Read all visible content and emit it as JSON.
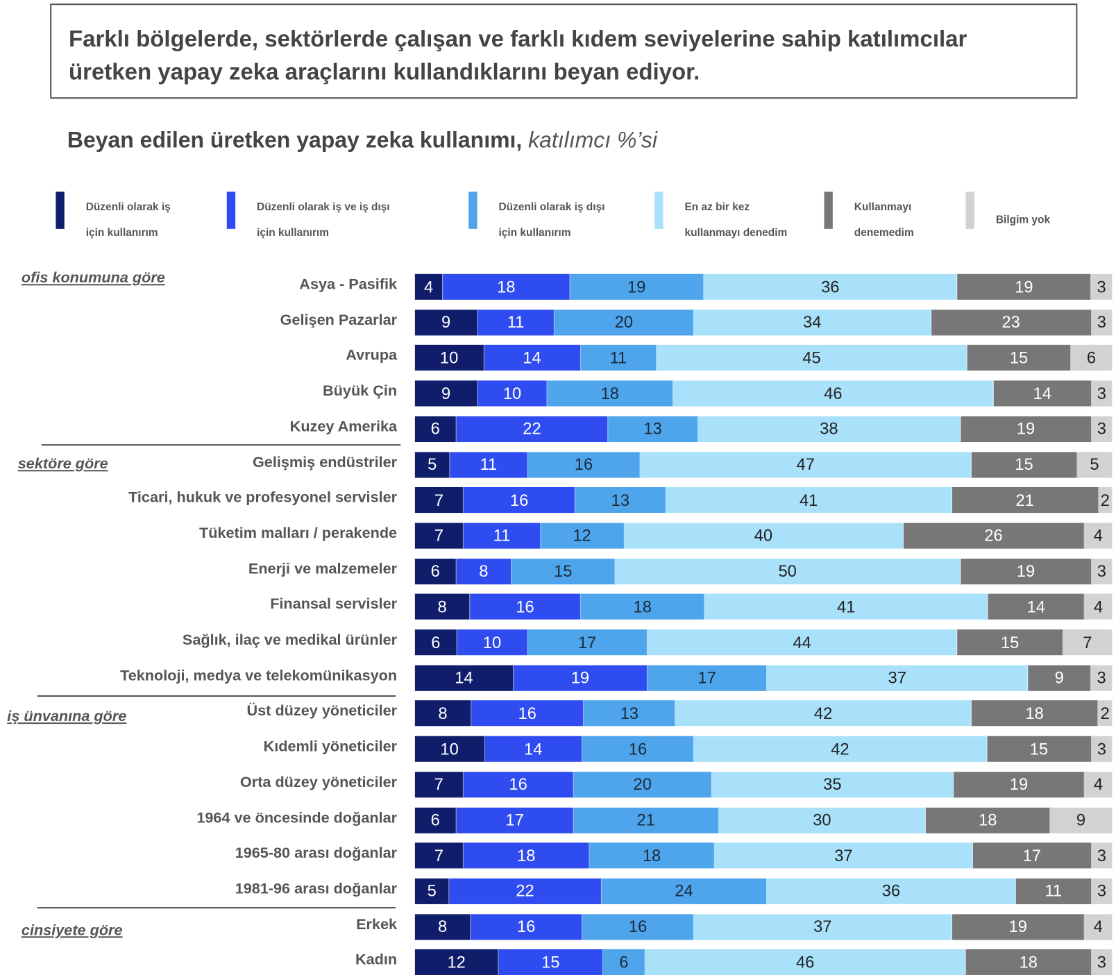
{
  "title": "Farklı bölgelerde, sektörlerde çalışan ve farklı kıdem seviyelerine sahip katılımcılar üretken yapay zeka araçlarını kullandıklarını beyan ediyor.",
  "subtitle": {
    "main": "Beyan edilen üretken yapay zeka kullanımı,",
    "unit": "katılımcı %’si"
  },
  "chart_data": {
    "type": "bar",
    "orientation": "horizontal",
    "stacked": true,
    "title": "Beyan edilen üretken yapay zeka kullanımı, katılımcı %’si",
    "legend_placement": "top",
    "series": [
      {
        "name_line1": "Düzenli olarak iş",
        "name_line2": "için kullanırım",
        "color": "#0f1d6b",
        "text_color": "#ffffff"
      },
      {
        "name_line1": "Düzenli olarak iş ve iş dışı",
        "name_line2": "için kullanırım",
        "color": "#2f4cf0",
        "text_color": "#ffffff"
      },
      {
        "name_line1": "Düzenli olarak iş dışı",
        "name_line2": "için kullanırım",
        "color": "#4fa5ec",
        "text_color": "#1a2a3a"
      },
      {
        "name_line1": "En az bir kez",
        "name_line2": "kullanmayı denedim",
        "color": "#a9e1fa",
        "text_color": "#222222"
      },
      {
        "name_line1": "Kullanmayı",
        "name_line2": "denemedim",
        "color": "#777777",
        "text_color": "#ffffff"
      },
      {
        "name_line1": "Bilgim yok",
        "name_line2": "",
        "color": "#d2d2d2",
        "text_color": "#222222"
      }
    ],
    "groups": [
      {
        "label": "ofis konumuna göre",
        "rows": [
          {
            "label": "Asya - Pasifik",
            "values": [
              4,
              18,
              19,
              36,
              19,
              3
            ]
          },
          {
            "label": "Gelişen Pazarlar",
            "values": [
              9,
              11,
              20,
              34,
              23,
              3
            ]
          },
          {
            "label": "Avrupa",
            "values": [
              10,
              14,
              11,
              45,
              15,
              6
            ]
          },
          {
            "label": "Büyük Çin",
            "values": [
              9,
              10,
              18,
              46,
              14,
              3
            ]
          },
          {
            "label": "Kuzey Amerika",
            "values": [
              6,
              22,
              13,
              38,
              19,
              3
            ]
          }
        ]
      },
      {
        "label": "sektöre göre",
        "rows": [
          {
            "label": "Gelişmiş endüstriler",
            "values": [
              5,
              11,
              16,
              47,
              15,
              5
            ]
          },
          {
            "label": "Ticari, hukuk ve profesyonel servisler",
            "values": [
              7,
              16,
              13,
              41,
              21,
              2
            ]
          },
          {
            "label": "Tüketim malları / perakende",
            "values": [
              7,
              11,
              12,
              40,
              26,
              4
            ]
          },
          {
            "label": "Enerji ve malzemeler",
            "values": [
              6,
              8,
              15,
              50,
              19,
              3
            ]
          },
          {
            "label": "Finansal servisler",
            "values": [
              8,
              16,
              18,
              41,
              14,
              4
            ]
          },
          {
            "label": "Sağlık, ilaç ve medikal ürünler",
            "values": [
              6,
              10,
              17,
              44,
              15,
              7
            ]
          },
          {
            "label": "Teknoloji, medya ve telekomünikasyon",
            "values": [
              14,
              19,
              17,
              37,
              9,
              3
            ]
          }
        ]
      },
      {
        "label": "iş ünvanına göre",
        "rows": [
          {
            "label": "Üst düzey yöneticiler",
            "values": [
              8,
              16,
              13,
              42,
              18,
              2
            ]
          },
          {
            "label": "Kıdemli yöneticiler",
            "values": [
              10,
              14,
              16,
              42,
              15,
              3
            ]
          },
          {
            "label": "Orta düzey yöneticiler",
            "values": [
              7,
              16,
              20,
              35,
              19,
              4
            ]
          },
          {
            "label": "1964 ve öncesinde doğanlar",
            "values": [
              6,
              17,
              21,
              30,
              18,
              9
            ]
          },
          {
            "label": "1965-80 arası doğanlar",
            "values": [
              7,
              18,
              18,
              37,
              17,
              3
            ]
          },
          {
            "label": "1981-96 arası doğanlar",
            "values": [
              5,
              22,
              24,
              36,
              11,
              3
            ]
          }
        ]
      },
      {
        "label": "cinsiyete göre",
        "rows": [
          {
            "label": "Erkek",
            "values": [
              8,
              16,
              16,
              37,
              19,
              4
            ]
          },
          {
            "label": "Kadın",
            "values": [
              12,
              15,
              6,
              46,
              18,
              3
            ]
          }
        ]
      }
    ]
  }
}
